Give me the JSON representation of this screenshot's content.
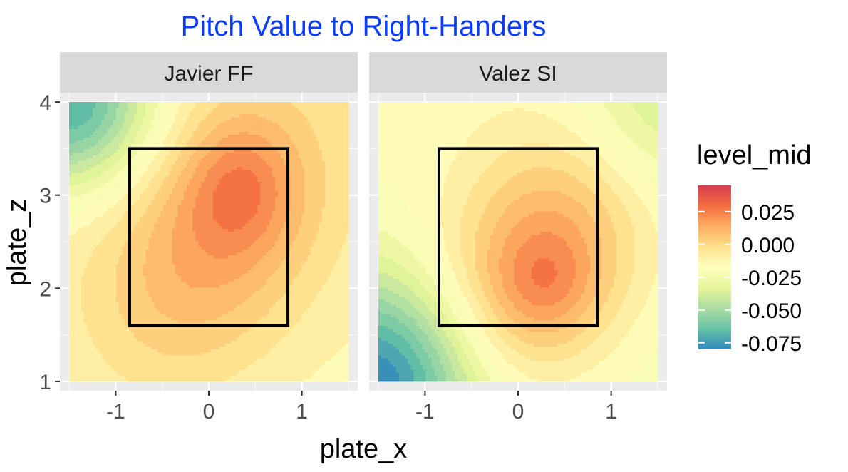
{
  "chart_data": {
    "type": "heatmap",
    "title": "Pitch Value to Right-Handers",
    "title_color": "#0a3cff",
    "xlabel": "plate_x",
    "ylabel": "plate_z",
    "xlim": [
      -1.6,
      1.6
    ],
    "ylim": [
      0.9,
      4.1
    ],
    "x_ticks": [
      -1,
      0,
      1
    ],
    "x_tick_labels": [
      "-1",
      "0",
      "1"
    ],
    "y_ticks": [
      1,
      2,
      3,
      4
    ],
    "y_tick_labels": [
      "1",
      "2",
      "3",
      "4"
    ],
    "data_extent": {
      "x": [
        -1.5,
        1.5
      ],
      "y": [
        1,
        4
      ]
    },
    "strike_zone": {
      "x": [
        -0.85,
        0.85
      ],
      "z": [
        1.6,
        3.5
      ]
    },
    "legend": {
      "title": "level_mid",
      "placement": "right",
      "labels": [
        "0.025",
        "0.000",
        "-0.025",
        "-0.050",
        "-0.075"
      ],
      "label_values": [
        0.025,
        0.0,
        -0.025,
        -0.05,
        -0.075
      ],
      "range": [
        -0.08,
        0.045
      ],
      "palette": [
        "#3288bd",
        "#66c2a5",
        "#abdda4",
        "#e6f598",
        "#ffffbf",
        "#fee08b",
        "#fdae61",
        "#f46d43",
        "#d53e4f"
      ]
    },
    "panels": [
      {
        "label": "Javier FF",
        "components": [
          {
            "x": 0.0,
            "y": 2.45,
            "amp": 0.027,
            "sx": 0.85,
            "sy": 1.05,
            "rho": 0.3
          },
          {
            "x": 0.35,
            "y": 3.1,
            "amp": 0.018,
            "sx": 0.42,
            "sy": 0.5,
            "rho": 0.0
          }
        ],
        "base": -0.017,
        "plane": [
          0.0,
          0.002
        ],
        "corner": {
          "x": -1.5,
          "y": 4.0,
          "amp": -0.06,
          "s": 0.65
        }
      },
      {
        "label": "Valez SI",
        "components": [
          {
            "x": 0.2,
            "y": 2.25,
            "amp": 0.038,
            "sx": 0.8,
            "sy": 1.0,
            "rho": 0.3
          },
          {
            "x": 0.3,
            "y": 2.05,
            "amp": 0.012,
            "sx": 0.38,
            "sy": 0.38,
            "rho": 0.0
          }
        ],
        "base": -0.025,
        "plane": [
          0.0,
          0.002
        ],
        "corner": {
          "x": -1.5,
          "y": 1.0,
          "amp": -0.06,
          "s": 0.8
        },
        "corner2": {
          "x": 1.5,
          "y": 4.0,
          "amp": -0.022,
          "s": 0.7
        }
      }
    ]
  }
}
